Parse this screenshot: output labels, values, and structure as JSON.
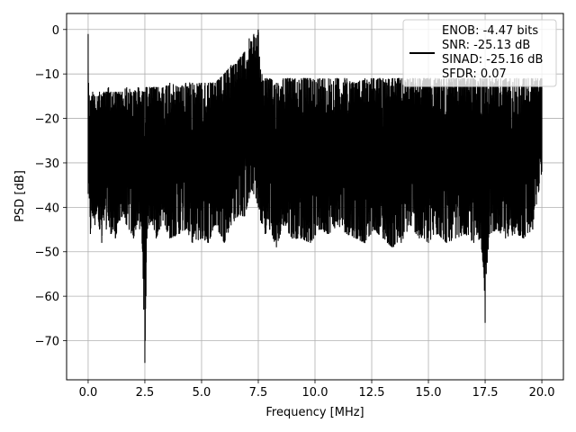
{
  "chart_data": {
    "type": "line",
    "title": "",
    "xlabel": "Frequency [MHz]",
    "ylabel": "PSD [dB]",
    "xlim": [
      -0.95,
      20.95
    ],
    "ylim": [
      -78.8,
      3.6
    ],
    "xticks": [
      0.0,
      2.5,
      5.0,
      7.5,
      10.0,
      12.5,
      15.0,
      17.5,
      20.0
    ],
    "xtick_labels": [
      "0.0",
      "2.5",
      "5.0",
      "7.5",
      "10.0",
      "12.5",
      "15.0",
      "17.5",
      "20.0"
    ],
    "yticks": [
      0,
      -10,
      -20,
      -30,
      -40,
      -50,
      -60,
      -70
    ],
    "ytick_labels": [
      "0",
      "−10",
      "−20",
      "−30",
      "−40",
      "−50",
      "−60",
      "−70"
    ],
    "grid": true,
    "legend_position": "upper-right",
    "legend_lines": [
      "ENOB: -4.47 bits",
      "SNR: -25.13 dB",
      "SINAD: -25.16 dB",
      "SFDR: 0.07"
    ],
    "series_color": "#000000",
    "series": [
      {
        "x": [
          0.0,
          0.02,
          0.05,
          0.1,
          0.2,
          0.3,
          0.4,
          0.5,
          0.6,
          0.7,
          0.8,
          0.9,
          1.0,
          1.2,
          1.4,
          1.5,
          1.7,
          2.0,
          2.2,
          2.4,
          2.45,
          2.5,
          2.55,
          2.6,
          2.8,
          3.0,
          3.3,
          3.6,
          4.0,
          4.3,
          4.6,
          5.0,
          5.3,
          5.6,
          6.0,
          6.3,
          6.6,
          6.9,
          7.1,
          7.2,
          7.3,
          7.4,
          7.5,
          7.6,
          7.8,
          8.0,
          8.3,
          8.6,
          9.0,
          9.4,
          9.8,
          10.2,
          10.6,
          11.0,
          11.4,
          11.8,
          12.2,
          12.6,
          13.0,
          13.4,
          13.8,
          14.2,
          14.6,
          15.0,
          15.4,
          15.8,
          16.2,
          16.6,
          17.0,
          17.3,
          17.45,
          17.5,
          17.55,
          17.7,
          18.0,
          18.4,
          18.8,
          19.2,
          19.6,
          20.0
        ],
        "upper": [
          -1,
          -12,
          -15,
          -16,
          -14,
          -15,
          -15,
          -14,
          -15,
          -14,
          -14,
          -13,
          -14,
          -14,
          -14,
          -14,
          -13,
          -14,
          -13,
          -14,
          -14,
          -14,
          -13,
          -13,
          -13,
          -13,
          -13,
          -12,
          -13,
          -12,
          -12,
          -12,
          -12,
          -12,
          -10,
          -8,
          -7,
          -5,
          -2,
          -3,
          -1,
          -2,
          0,
          -9,
          -11,
          -11,
          -12,
          -11,
          -11,
          -11,
          -11,
          -11,
          -11,
          -11,
          -11,
          -12,
          -11,
          -11,
          -11,
          -11,
          -11,
          -11,
          -11,
          -11,
          -11,
          -11,
          -11,
          -11,
          -11,
          -11,
          -11,
          -11,
          -11,
          -11,
          -11,
          -11,
          -11,
          -11,
          -11,
          -11
        ],
        "lower": [
          -37,
          -34,
          -38,
          -46,
          -42,
          -44,
          -40,
          -45,
          -48,
          -43,
          -45,
          -43,
          -46,
          -47,
          -43,
          -42,
          -44,
          -47,
          -43,
          -50,
          -63,
          -75,
          -60,
          -45,
          -43,
          -47,
          -43,
          -47,
          -46,
          -45,
          -48,
          -47,
          -48,
          -44,
          -48,
          -44,
          -42,
          -42,
          -38,
          -36,
          -37,
          -38,
          -40,
          -43,
          -46,
          -45,
          -49,
          -44,
          -47,
          -47,
          -48,
          -45,
          -46,
          -44,
          -46,
          -47,
          -48,
          -45,
          -47,
          -49,
          -48,
          -44,
          -47,
          -48,
          -46,
          -48,
          -47,
          -46,
          -48,
          -47,
          -55,
          -66,
          -55,
          -46,
          -45,
          -47,
          -46,
          -47,
          -45,
          -32
        ]
      }
    ]
  }
}
